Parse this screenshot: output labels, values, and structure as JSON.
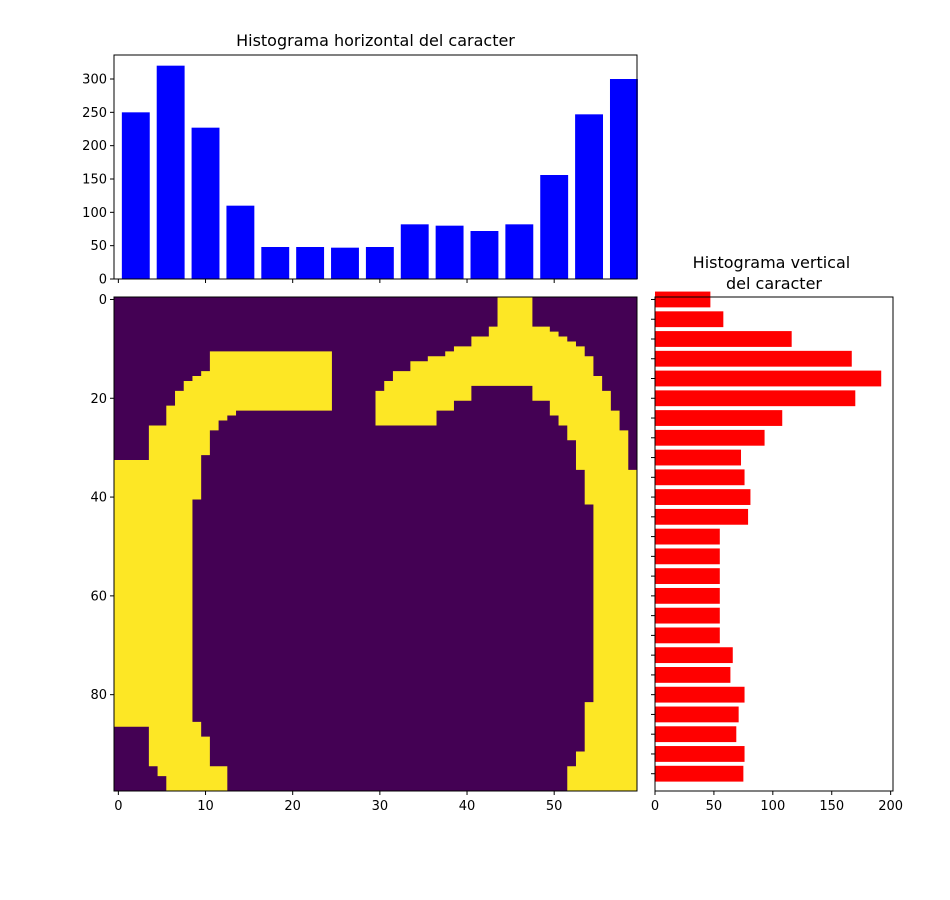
{
  "chart_data": [
    {
      "type": "bar",
      "title": "Histograma horizontal del caracter",
      "orientation": "vertical-bars",
      "color": "#0000ff",
      "x": [
        2,
        6,
        10,
        14,
        18,
        22,
        26,
        30,
        34,
        38,
        42,
        46,
        50,
        54,
        58
      ],
      "values": [
        250,
        320,
        227,
        110,
        48,
        48,
        47,
        48,
        82,
        80,
        72,
        82,
        156,
        247,
        300
      ],
      "bar_width": 3.2,
      "xlim": [
        -0.5,
        59.5
      ],
      "ylim": [
        0,
        336
      ],
      "yticks": [
        0,
        50,
        100,
        150,
        200,
        250,
        300
      ],
      "xticks": [
        0,
        10,
        20,
        30,
        40,
        50
      ],
      "xticklabels_visible": false
    },
    {
      "type": "heatmap",
      "title": "",
      "colormap": "viridis (binary)",
      "colors": {
        "low": "#440154",
        "high": "#fde725"
      },
      "shape": [
        100,
        60
      ],
      "xlim": [
        -0.5,
        59.5
      ],
      "ylim": [
        99.5,
        -0.5
      ],
      "xticks": [
        0,
        10,
        20,
        30,
        40,
        50
      ],
      "yticks": [
        0,
        20,
        40,
        60,
        80
      ],
      "description_shape": "letter-like outline (apple shape)"
    },
    {
      "type": "bar",
      "title": "Histograma vertical\ndel caracter",
      "title_lines": [
        "Histograma vertical",
        "del caracter"
      ],
      "orientation": "horizontal-bars",
      "color": "#ff0000",
      "y": [
        0,
        4,
        8,
        12,
        16,
        20,
        24,
        28,
        32,
        36,
        40,
        44,
        48,
        52,
        56,
        60,
        64,
        68,
        72,
        76,
        80,
        84,
        88,
        92,
        96
      ],
      "values": [
        47,
        58,
        116,
        167,
        192,
        170,
        108,
        93,
        73,
        76,
        81,
        79,
        55,
        55,
        55,
        55,
        55,
        55,
        66,
        64,
        76,
        71,
        69,
        76,
        75
      ],
      "bar_height": 3.2,
      "xlim": [
        0,
        202
      ],
      "ylim": [
        99.5,
        -0.5
      ],
      "xticks": [
        0,
        50,
        100,
        150,
        200
      ],
      "yticklabels_visible": false
    }
  ]
}
